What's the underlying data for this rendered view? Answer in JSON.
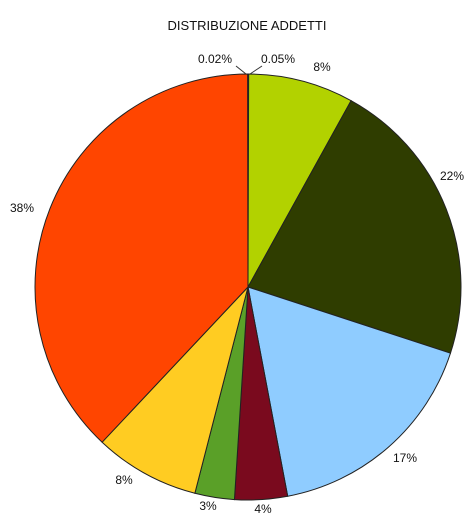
{
  "chart_data": {
    "type": "pie",
    "title": "DISTRIBUZIONE ADDETTI",
    "slices": [
      {
        "value": 0.05,
        "label": "0.05%",
        "color": "#cfe0a0"
      },
      {
        "value": 8,
        "label": "8%",
        "color": "#b2d200"
      },
      {
        "value": 22,
        "label": "22%",
        "color": "#2f3d00"
      },
      {
        "value": 17,
        "label": "17%",
        "color": "#8fccff"
      },
      {
        "value": 4,
        "label": "4%",
        "color": "#7a0a1e"
      },
      {
        "value": 3,
        "label": "3%",
        "color": "#5aa028"
      },
      {
        "value": 8,
        "label": "8%",
        "color": "#ffcc22"
      },
      {
        "value": 38,
        "label": "38%",
        "color": "#ff4500"
      },
      {
        "value": 0.02,
        "label": "0.02%",
        "color": "#f0a080"
      }
    ],
    "start_angle_deg": 0,
    "direction": "clockwise"
  }
}
